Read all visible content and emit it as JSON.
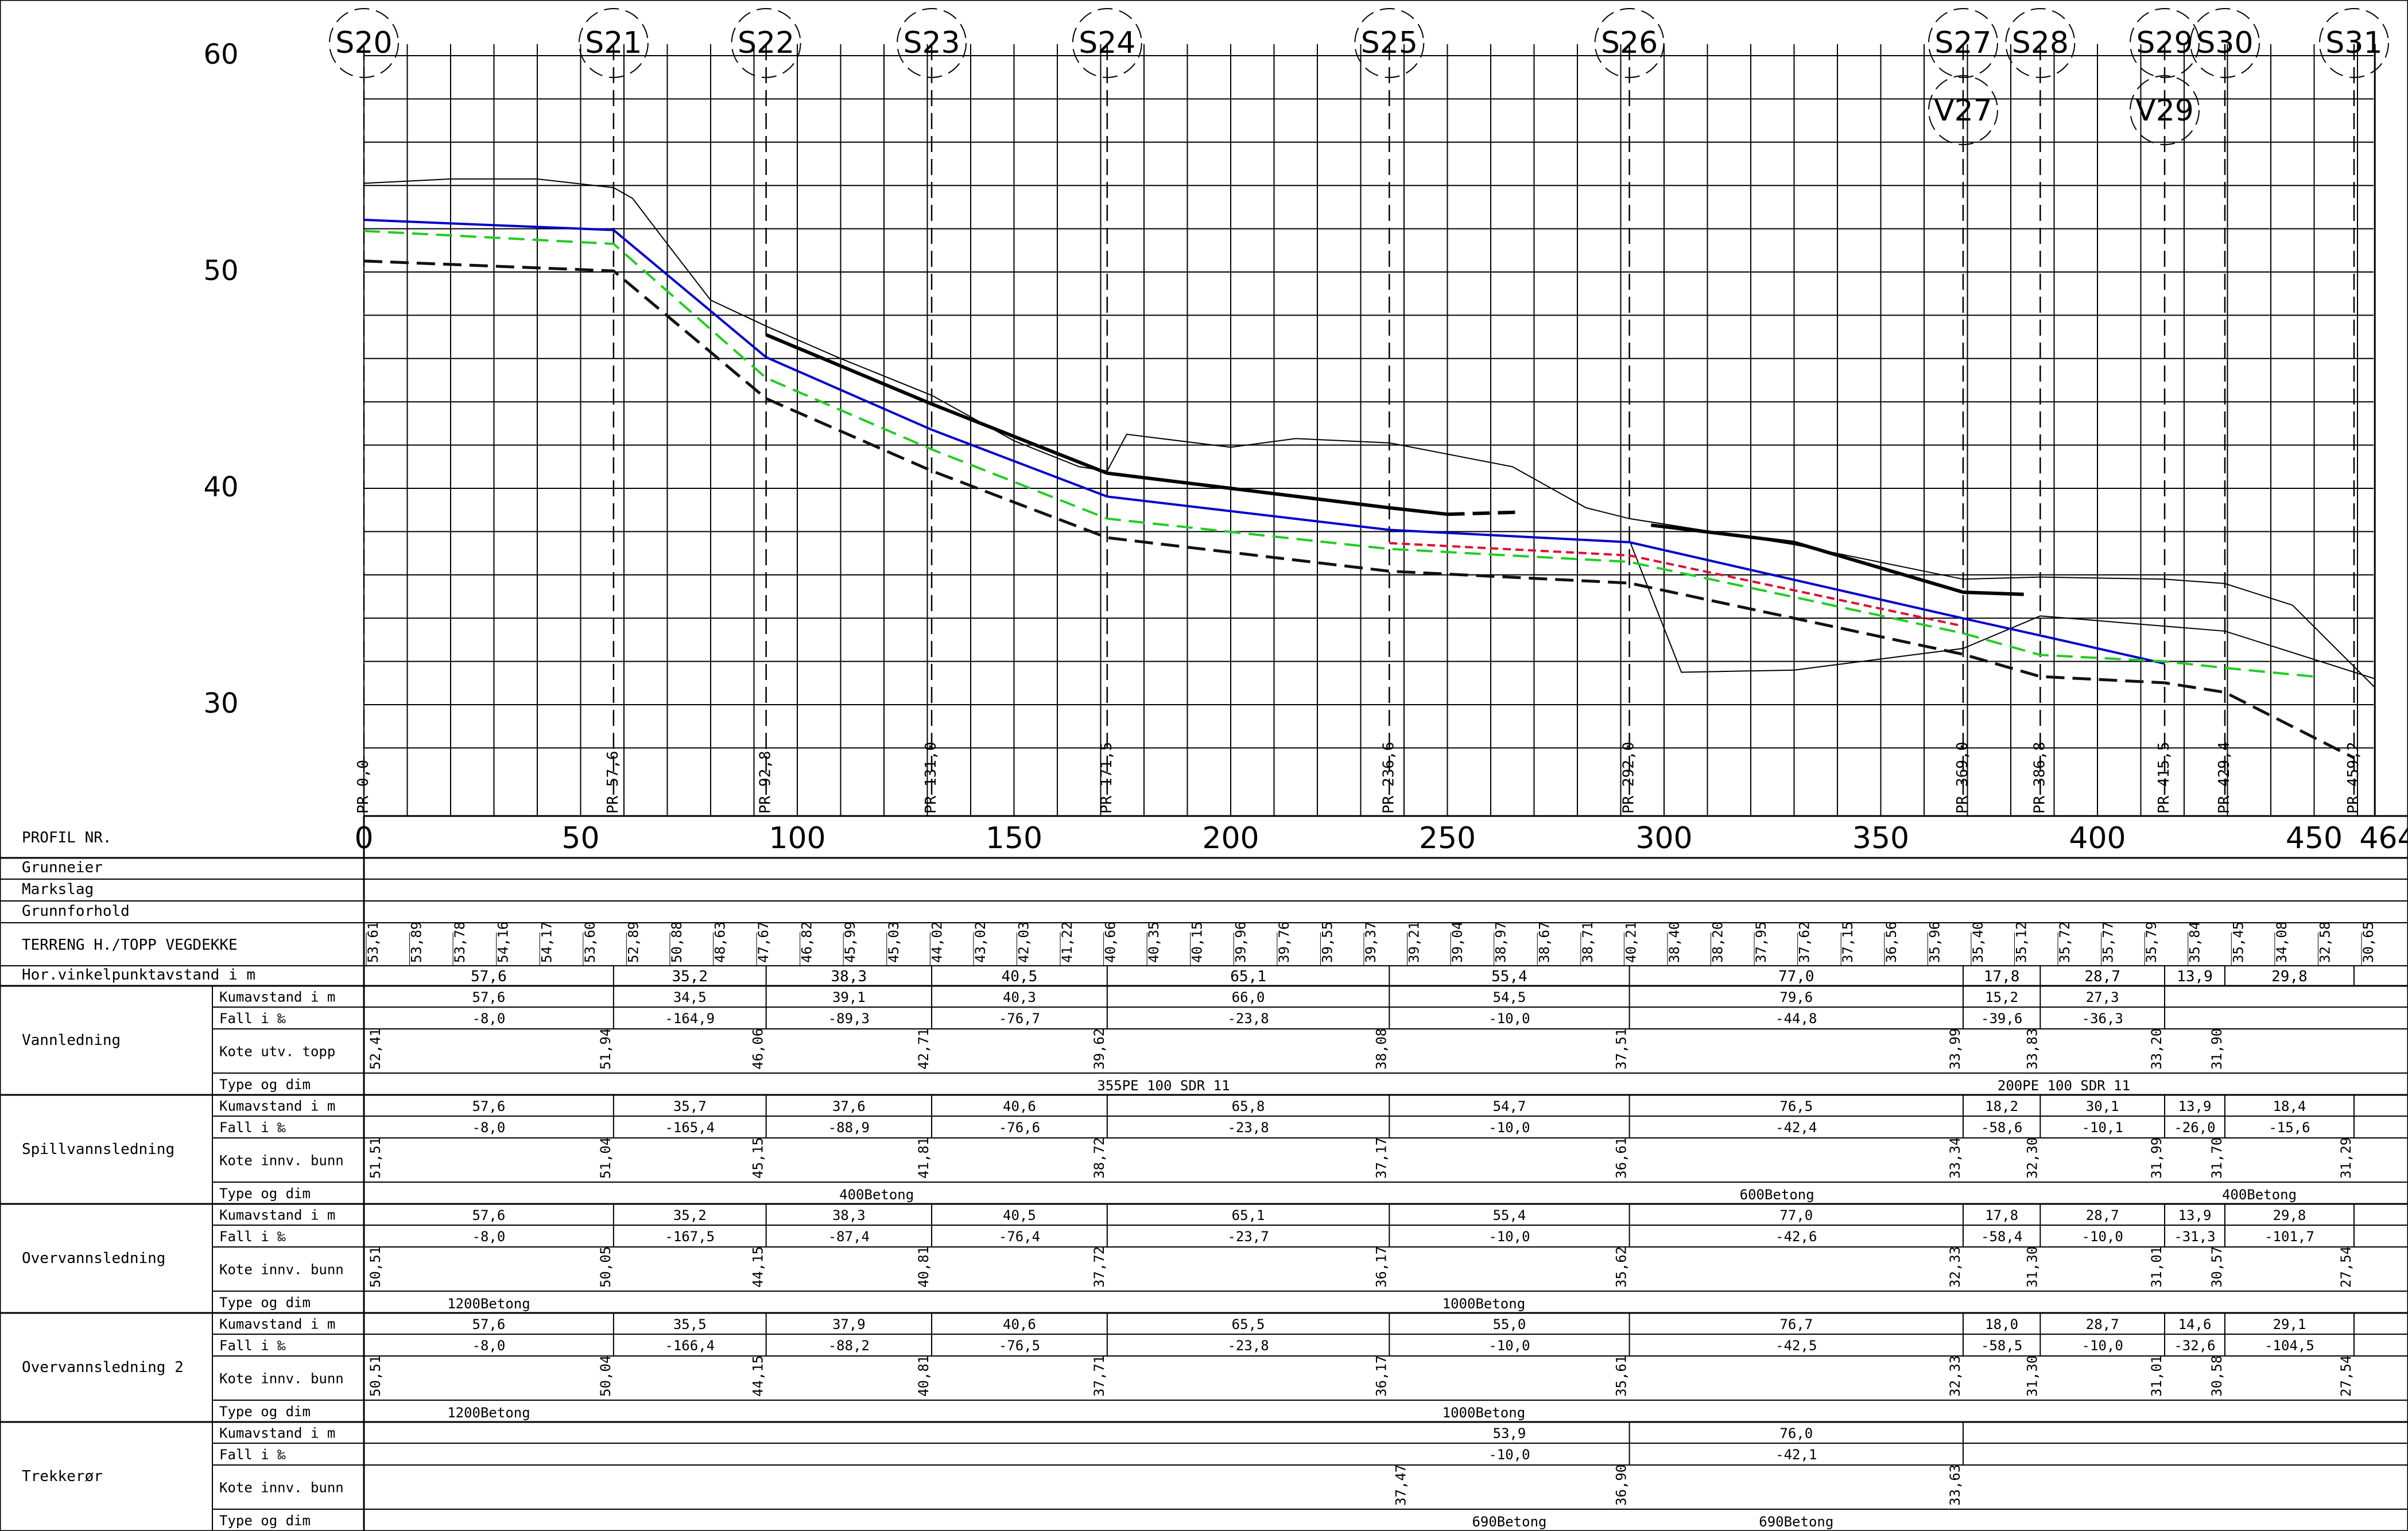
{
  "manholes": [
    {
      "name": "S20",
      "pr": "PR 0,0",
      "station": 0,
      "ground": 53.61
    },
    {
      "name": "S21",
      "pr": "PR 57,6",
      "station": 57.6,
      "ground": 52.89
    },
    {
      "name": "S22",
      "pr": "PR 92,8",
      "station": 92.8,
      "ground": 47.67
    },
    {
      "name": "S23",
      "pr": "PR 131,0",
      "station": 131.0,
      "ground": 44.02
    },
    {
      "name": "S24",
      "pr": "PR 171,5",
      "station": 171.5,
      "ground": 40.66
    },
    {
      "name": "S25",
      "pr": "PR 236,6",
      "station": 236.6,
      "ground": 39.21
    },
    {
      "name": "S26",
      "pr": "PR 292,0",
      "station": 292.0,
      "ground": 40.21
    },
    {
      "name": "S27",
      "pr": "PR 369,0",
      "station": 369.0,
      "ground": 35.4,
      "sub": "V27"
    },
    {
      "name": "S28",
      "pr": "PR 386,8",
      "station": 386.8,
      "ground": 35.72
    },
    {
      "name": "S29",
      "pr": "PR 415,5",
      "station": 415.5,
      "ground": 35.84,
      "sub": "V29"
    },
    {
      "name": "S30",
      "pr": "PR 429,4",
      "station": 429.4,
      "ground": 35.45
    },
    {
      "name": "S31",
      "pr": "PR 459,2",
      "station": 459.2,
      "ground": 30.65
    }
  ],
  "elevation_labels": [
    "60",
    "50",
    "40",
    "30"
  ],
  "station_labels": [
    "0",
    "50",
    "100",
    "150",
    "200",
    "250",
    "300",
    "350",
    "400",
    "450",
    "464"
  ],
  "terrain_values": [
    "53,61",
    "53,89",
    "53,78",
    "54,16",
    "54,17",
    "53,60",
    "52,89",
    "50,88",
    "48,63",
    "47,67",
    "46,82",
    "45,99",
    "45,03",
    "44,02",
    "43,02",
    "42,03",
    "41,22",
    "40,66",
    "40,35",
    "40,15",
    "39,96",
    "39,76",
    "39,55",
    "39,37",
    "39,21",
    "39,04",
    "38,97",
    "38,67",
    "38,71",
    "40,21",
    "38,40",
    "38,20",
    "37,95",
    "37,62",
    "37,15",
    "36,56",
    "35,96",
    "35,40",
    "35,12",
    "35,72",
    "35,77",
    "35,79",
    "35,84",
    "35,45",
    "34,08",
    "32,58",
    "30,65"
  ],
  "table": {
    "profil_nr": "PROFIL NR.",
    "grunneier": "Grunneier",
    "markslag": "Markslag",
    "grunnforhold": "Grunnforhold",
    "terreng": "TERRENG H./TOPP VEGDEKKE",
    "hor_label": "Hor.vinkelpunktavstand i m",
    "hor_values": [
      "57,6",
      "35,2",
      "38,3",
      "40,5",
      "65,1",
      "55,4",
      "77,0",
      "17,8",
      "28,7",
      "13,9",
      "29,8"
    ],
    "sections": [
      {
        "name": "Vannledning",
        "rows": [
          "Kumavstand i m",
          "Fall i ‰",
          "Kote utv. topp",
          "Type og dim"
        ],
        "kum": [
          "57,6",
          "34,5",
          "39,1",
          "40,3",
          "66,0",
          "54,5",
          "79,6",
          "15,2",
          "27,3"
        ],
        "fall": [
          "-8,0",
          "-164,9",
          "-89,3",
          "-76,7",
          "-23,8",
          "-10,0",
          "-44,8",
          "-39,6",
          "-36,3"
        ],
        "kote": [
          "52,41",
          "51,94",
          "46,06",
          "42,71",
          "39,62",
          "38,08",
          "37,51",
          "33,99",
          "33,83",
          "33,20",
          "31,90"
        ],
        "type": [
          "355PE 100 SDR 11",
          "200PE 100 SDR 11"
        ]
      },
      {
        "name": "Spillvannsledning",
        "rows": [
          "Kumavstand i m",
          "Fall i ‰",
          "Kote innv. bunn",
          "Type og dim"
        ],
        "kum": [
          "57,6",
          "35,7",
          "37,6",
          "40,6",
          "65,8",
          "54,7",
          "76,5",
          "18,2",
          "30,1",
          "13,9",
          "18,4"
        ],
        "fall": [
          "-8,0",
          "-165,4",
          "-88,9",
          "-76,6",
          "-23,8",
          "-10,0",
          "-42,4",
          "-58,6",
          "-10,1",
          "-26,0",
          "-15,6"
        ],
        "kote": [
          "51,51",
          "51,04",
          "45,15",
          "41,81",
          "38,72",
          "37,17",
          "36,61",
          "33,34",
          "32,30",
          "31,99",
          "31,70",
          "31,29"
        ],
        "type": [
          "400Betong",
          "600Betong",
          "400Betong"
        ]
      },
      {
        "name": "Overvannsledning",
        "rows": [
          "Kumavstand i m",
          "Fall i ‰",
          "Kote innv. bunn",
          "Type og dim"
        ],
        "kum": [
          "57,6",
          "35,2",
          "38,3",
          "40,5",
          "65,1",
          "55,4",
          "77,0",
          "17,8",
          "28,7",
          "13,9",
          "29,8"
        ],
        "fall": [
          "-8,0",
          "-167,5",
          "-87,4",
          "-76,4",
          "-23,7",
          "-10,0",
          "-42,6",
          "-58,4",
          "-10,0",
          "-31,3",
          "-101,7"
        ],
        "kote": [
          "50,51",
          "50,05",
          "44,15",
          "40,81",
          "37,72",
          "36,17",
          "35,62",
          "32,33",
          "31,30",
          "31,01",
          "30,57",
          "27,54"
        ],
        "type": [
          "1200Betong",
          "1000Betong"
        ]
      },
      {
        "name": "Overvannsledning 2",
        "rows": [
          "Kumavstand i m",
          "Fall i ‰",
          "Kote innv. bunn",
          "Type og dim"
        ],
        "kum": [
          "57,6",
          "35,5",
          "37,9",
          "40,6",
          "65,5",
          "55,0",
          "76,7",
          "18,0",
          "28,7",
          "14,6",
          "29,1"
        ],
        "fall": [
          "-8,0",
          "-166,4",
          "-88,2",
          "-76,5",
          "-23,8",
          "-10,0",
          "-42,5",
          "-58,5",
          "-10,0",
          "-32,6",
          "-104,5"
        ],
        "kote": [
          "50,51",
          "50,04",
          "44,15",
          "40,81",
          "37,71",
          "36,17",
          "35,61",
          "32,33",
          "31,30",
          "31,01",
          "30,58",
          "27,54"
        ],
        "type": [
          "1200Betong",
          "1000Betong"
        ]
      },
      {
        "name": "Trekkerør",
        "rows": [
          "Kumavstand i m",
          "Fall i ‰",
          "Kote innv. bunn",
          "Type og dim"
        ],
        "kum": [
          "53,9",
          "76,0"
        ],
        "fall": [
          "-10,0",
          "-42,1"
        ],
        "kote": [
          "37,47",
          "36,90",
          "33,63"
        ],
        "type": [
          "690Betong",
          "690Betong"
        ]
      }
    ]
  },
  "colors": {
    "vann": "#0000cc",
    "spill": "#111111",
    "overvann": "#22cc22",
    "trekkeror": "#dd1133",
    "grid": "#000000"
  }
}
